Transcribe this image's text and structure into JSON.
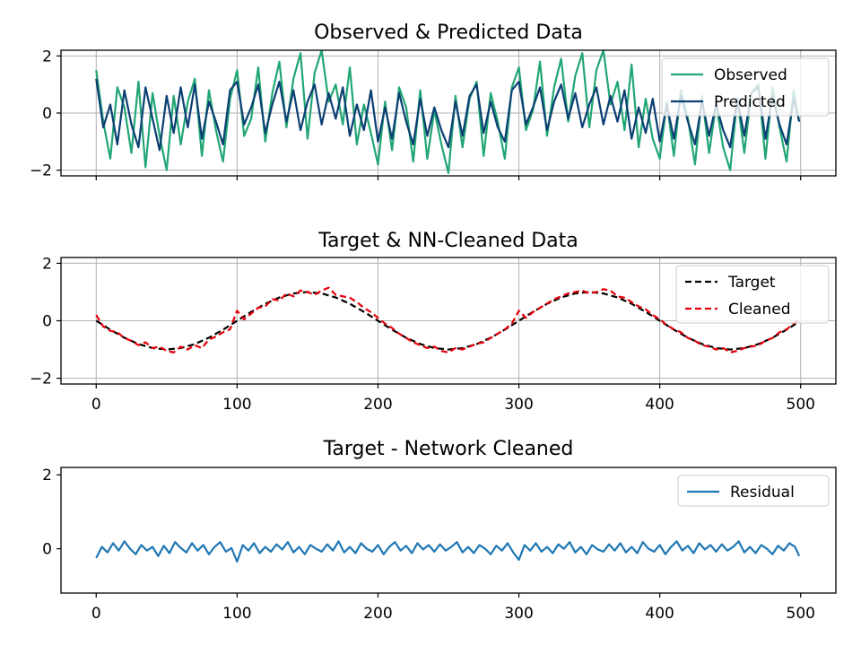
{
  "chart_data": [
    {
      "type": "line",
      "title": "Observed & Predicted Data",
      "xlabel": "",
      "ylabel": "",
      "xlim": [
        -25,
        525
      ],
      "ylim": [
        -2.2,
        2.2
      ],
      "xticks": [
        0,
        100,
        200,
        300,
        400,
        500
      ],
      "xtick_labels_visible": false,
      "yticks": [
        -2,
        0,
        2
      ],
      "ytick_labels": [
        "−2",
        "0",
        "2"
      ],
      "grid": true,
      "legend": "upper-right",
      "series": [
        {
          "name": "Observed",
          "color": "#21a674",
          "style": "solid",
          "x": [
            0,
            5,
            10,
            15,
            20,
            25,
            30,
            35,
            40,
            45,
            50,
            55,
            60,
            65,
            70,
            75,
            80,
            85,
            90,
            95,
            100,
            105,
            110,
            115,
            120,
            125,
            130,
            135,
            140,
            145,
            150,
            155,
            160,
            165,
            170,
            175,
            180,
            185,
            190,
            195,
            200,
            205,
            210,
            215,
            220,
            225,
            230,
            235,
            240,
            245,
            250,
            255,
            260,
            265,
            270,
            275,
            280,
            285,
            290,
            295,
            300,
            305,
            310,
            315,
            320,
            325,
            330,
            335,
            340,
            345,
            350,
            355,
            360,
            365,
            370,
            375,
            380,
            385,
            390,
            395,
            400,
            405,
            410,
            415,
            420,
            425,
            430,
            435,
            440,
            445,
            450,
            455,
            460,
            465,
            470,
            475,
            480,
            485,
            490,
            495,
            499
          ],
          "y": [
            1.5,
            -0.3,
            -1.6,
            0.9,
            0.2,
            -1.4,
            1.1,
            -1.9,
            0.7,
            -0.8,
            -2.0,
            0.6,
            -1.1,
            0.4,
            1.2,
            -1.5,
            0.8,
            -0.6,
            -1.7,
            0.5,
            1.5,
            -0.8,
            -0.2,
            1.6,
            -1.0,
            0.7,
            1.8,
            -0.5,
            1.2,
            2.1,
            -0.9,
            1.4,
            2.2,
            0.4,
            1.0,
            -0.4,
            1.6,
            -1.1,
            0.3,
            -0.7,
            -1.8,
            0.4,
            -1.3,
            0.9,
            0.2,
            -1.7,
            0.8,
            -1.6,
            0.1,
            -1.1,
            -2.1,
            0.6,
            -1.2,
            0.5,
            1.1,
            -1.5,
            0.7,
            -0.3,
            -1.6,
            0.9,
            1.6,
            -0.6,
            0.1,
            1.8,
            -0.8,
            0.9,
            1.9,
            -0.3,
            1.3,
            2.1,
            -0.5,
            1.5,
            2.2,
            0.3,
            1.1,
            -0.6,
            1.7,
            -1.2,
            0.5,
            -0.9,
            -1.6,
            0.4,
            -1.5,
            0.8,
            -0.2,
            -1.8,
            0.6,
            -1.4,
            0.3,
            -1.2,
            -2.0,
            0.5,
            -1.4,
            0.7,
            1.0,
            -1.6,
            0.9,
            -0.5,
            -1.7,
            0.8,
            -0.3
          ]
        },
        {
          "name": "Predicted",
          "color": "#0b3f73",
          "style": "solid",
          "x": [
            0,
            5,
            10,
            15,
            20,
            25,
            30,
            35,
            40,
            45,
            50,
            55,
            60,
            65,
            70,
            75,
            80,
            85,
            90,
            95,
            100,
            105,
            110,
            115,
            120,
            125,
            130,
            135,
            140,
            145,
            150,
            155,
            160,
            165,
            170,
            175,
            180,
            185,
            190,
            195,
            200,
            205,
            210,
            215,
            220,
            225,
            230,
            235,
            240,
            245,
            250,
            255,
            260,
            265,
            270,
            275,
            280,
            285,
            290,
            295,
            300,
            305,
            310,
            315,
            320,
            325,
            330,
            335,
            340,
            345,
            350,
            355,
            360,
            365,
            370,
            375,
            380,
            385,
            390,
            395,
            400,
            405,
            410,
            415,
            420,
            425,
            430,
            435,
            440,
            445,
            450,
            455,
            460,
            465,
            470,
            475,
            480,
            485,
            490,
            495,
            499
          ],
          "y": [
            1.2,
            -0.5,
            0.3,
            -1.1,
            0.8,
            -0.4,
            -1.2,
            0.9,
            -0.2,
            -1.3,
            0.6,
            -0.7,
            0.9,
            -0.5,
            1.0,
            -0.9,
            0.4,
            -0.3,
            -1.1,
            0.8,
            1.1,
            -0.4,
            0.2,
            1.0,
            -0.7,
            0.3,
            1.1,
            -0.3,
            0.8,
            -0.6,
            0.4,
            1.0,
            -0.4,
            0.7,
            -0.2,
            0.9,
            -0.8,
            0.3,
            -0.6,
            0.8,
            -1.0,
            0.2,
            -0.9,
            0.7,
            -0.3,
            -1.1,
            0.5,
            -0.8,
            0.2,
            -0.6,
            -1.2,
            0.4,
            -0.8,
            0.6,
            1.0,
            -0.7,
            0.4,
            -0.5,
            -1.0,
            0.8,
            1.1,
            -0.4,
            0.2,
            0.9,
            -0.6,
            0.4,
            1.0,
            -0.2,
            0.7,
            -0.5,
            0.3,
            0.9,
            -0.4,
            0.6,
            -0.3,
            0.8,
            -0.9,
            0.2,
            -0.7,
            0.5,
            -1.0,
            0.3,
            -0.9,
            0.6,
            -0.3,
            -1.1,
            0.4,
            -0.8,
            0.3,
            -0.6,
            -1.2,
            0.5,
            -0.8,
            0.7,
            0.9,
            -0.9,
            0.6,
            -0.4,
            -1.1,
            0.5,
            -0.3
          ]
        }
      ]
    },
    {
      "type": "line",
      "title": "Target & NN-Cleaned Data",
      "xlabel": "",
      "ylabel": "",
      "xlim": [
        -25,
        525
      ],
      "ylim": [
        -2.2,
        2.2
      ],
      "xticks": [
        0,
        100,
        200,
        300,
        400,
        500
      ],
      "xtick_labels": [
        "0",
        "100",
        "200",
        "300",
        "400",
        "500"
      ],
      "yticks": [
        -2,
        0,
        2
      ],
      "ytick_labels": [
        "−2",
        "0",
        "2"
      ],
      "grid": true,
      "legend": "upper-right",
      "series": [
        {
          "name": "Target",
          "color": "#000000",
          "style": "dashed",
          "x": [
            0,
            10,
            20,
            30,
            40,
            50,
            60,
            70,
            80,
            90,
            100,
            110,
            120,
            130,
            140,
            150,
            160,
            170,
            180,
            190,
            200,
            210,
            220,
            230,
            240,
            250,
            260,
            270,
            280,
            290,
            300,
            310,
            320,
            330,
            340,
            350,
            360,
            370,
            380,
            390,
            400,
            410,
            420,
            430,
            440,
            450,
            460,
            470,
            480,
            490,
            499
          ],
          "y": [
            0.0,
            -0.31,
            -0.59,
            -0.81,
            -0.95,
            -1.0,
            -0.95,
            -0.81,
            -0.59,
            -0.31,
            0.0,
            0.31,
            0.59,
            0.81,
            0.95,
            1.0,
            0.95,
            0.81,
            0.59,
            0.31,
            0.0,
            -0.31,
            -0.59,
            -0.81,
            -0.95,
            -1.0,
            -0.95,
            -0.81,
            -0.59,
            -0.31,
            0.0,
            0.31,
            0.59,
            0.81,
            0.95,
            1.0,
            0.95,
            0.81,
            0.59,
            0.31,
            0.0,
            -0.31,
            -0.59,
            -0.81,
            -0.95,
            -1.0,
            -0.95,
            -0.81,
            -0.59,
            -0.31,
            -0.03
          ]
        },
        {
          "name": "Cleaned",
          "color": "#e8000b",
          "style": "dashed",
          "x": [
            0,
            5,
            10,
            15,
            20,
            25,
            30,
            35,
            40,
            45,
            50,
            55,
            60,
            65,
            70,
            75,
            80,
            85,
            90,
            95,
            100,
            105,
            110,
            115,
            120,
            125,
            130,
            135,
            140,
            145,
            150,
            155,
            160,
            165,
            170,
            175,
            180,
            185,
            190,
            195,
            200,
            205,
            210,
            215,
            220,
            225,
            230,
            235,
            240,
            245,
            250,
            255,
            260,
            265,
            270,
            275,
            280,
            285,
            290,
            295,
            300,
            305,
            310,
            315,
            320,
            325,
            330,
            335,
            340,
            345,
            350,
            355,
            360,
            365,
            370,
            375,
            380,
            385,
            390,
            395,
            400,
            405,
            410,
            415,
            420,
            425,
            430,
            435,
            440,
            445,
            450,
            455,
            460,
            465,
            470,
            475,
            480,
            485,
            490,
            495,
            499
          ],
          "y": [
            0.2,
            -0.2,
            -0.35,
            -0.4,
            -0.6,
            -0.7,
            -0.85,
            -0.75,
            -0.95,
            -0.9,
            -1.05,
            -1.1,
            -0.9,
            -1.0,
            -0.85,
            -0.95,
            -0.65,
            -0.55,
            -0.4,
            -0.3,
            0.35,
            0.05,
            0.25,
            0.45,
            0.5,
            0.75,
            0.7,
            0.95,
            0.85,
            1.05,
            1.0,
            0.9,
            1.05,
            1.15,
            0.9,
            0.85,
            0.8,
            0.65,
            0.45,
            0.3,
            0.1,
            -0.1,
            -0.25,
            -0.45,
            -0.6,
            -0.75,
            -0.85,
            -0.95,
            -0.9,
            -1.05,
            -1.1,
            -0.95,
            -1.0,
            -0.9,
            -0.8,
            -0.75,
            -0.6,
            -0.45,
            -0.3,
            -0.1,
            0.35,
            0.1,
            0.3,
            0.45,
            0.6,
            0.75,
            0.85,
            0.95,
            1.0,
            1.05,
            0.95,
            1.0,
            1.1,
            1.05,
            0.85,
            0.8,
            0.65,
            0.5,
            0.4,
            0.2,
            0.05,
            -0.15,
            -0.3,
            -0.4,
            -0.6,
            -0.7,
            -0.85,
            -0.9,
            -1.0,
            -0.95,
            -1.1,
            -1.05,
            -0.95,
            -0.9,
            -0.85,
            -0.7,
            -0.6,
            -0.4,
            -0.3,
            -0.1,
            0.05
          ]
        }
      ]
    },
    {
      "type": "line",
      "title": "Target - Network Cleaned",
      "xlabel": "",
      "ylabel": "",
      "xlim": [
        -25,
        525
      ],
      "ylim": [
        -1.2,
        2.2
      ],
      "xticks": [
        0,
        100,
        200,
        300,
        400,
        500
      ],
      "xtick_labels": [
        "0",
        "100",
        "200",
        "300",
        "400",
        "500"
      ],
      "yticks": [
        0,
        2
      ],
      "ytick_labels": [
        "0",
        "2"
      ],
      "grid": false,
      "legend": "upper-right",
      "series": [
        {
          "name": "Residual",
          "color": "#1f77b4",
          "style": "solid",
          "x": [
            0,
            4,
            8,
            12,
            16,
            20,
            24,
            28,
            32,
            36,
            40,
            44,
            48,
            52,
            56,
            60,
            64,
            68,
            72,
            76,
            80,
            84,
            88,
            92,
            96,
            100,
            104,
            108,
            112,
            116,
            120,
            124,
            128,
            132,
            136,
            140,
            144,
            148,
            152,
            156,
            160,
            164,
            168,
            172,
            176,
            180,
            184,
            188,
            192,
            196,
            200,
            204,
            208,
            212,
            216,
            220,
            224,
            228,
            232,
            236,
            240,
            244,
            248,
            252,
            256,
            260,
            264,
            268,
            272,
            276,
            280,
            284,
            288,
            292,
            296,
            300,
            304,
            308,
            312,
            316,
            320,
            324,
            328,
            332,
            336,
            340,
            344,
            348,
            352,
            356,
            360,
            364,
            368,
            372,
            376,
            380,
            384,
            388,
            392,
            396,
            400,
            404,
            408,
            412,
            416,
            420,
            424,
            428,
            432,
            436,
            440,
            444,
            448,
            452,
            456,
            460,
            464,
            468,
            472,
            476,
            480,
            484,
            488,
            492,
            496,
            499
          ],
          "y": [
            -0.25,
            0.05,
            -0.1,
            0.15,
            -0.05,
            0.2,
            0.0,
            -0.15,
            0.1,
            -0.05,
            0.05,
            -0.2,
            0.08,
            -0.12,
            0.18,
            0.02,
            -0.1,
            0.15,
            -0.05,
            0.1,
            -0.15,
            0.05,
            0.18,
            -0.08,
            0.02,
            -0.35,
            0.1,
            -0.05,
            0.15,
            -0.12,
            0.05,
            -0.08,
            0.12,
            -0.02,
            0.18,
            -0.1,
            0.05,
            -0.15,
            0.1,
            0.0,
            -0.08,
            0.12,
            -0.05,
            0.2,
            -0.1,
            0.05,
            -0.12,
            0.15,
            0.0,
            -0.08,
            0.1,
            -0.15,
            0.05,
            0.18,
            -0.05,
            0.08,
            -0.12,
            0.15,
            -0.02,
            0.1,
            -0.08,
            0.12,
            -0.05,
            0.05,
            0.18,
            -0.1,
            0.05,
            -0.12,
            0.1,
            0.0,
            -0.15,
            0.08,
            -0.05,
            0.15,
            -0.1,
            -0.3,
            0.1,
            -0.05,
            0.15,
            -0.08,
            0.05,
            -0.12,
            0.12,
            0.0,
            0.18,
            -0.1,
            0.05,
            -0.15,
            0.1,
            -0.02,
            -0.08,
            0.12,
            -0.05,
            0.15,
            -0.1,
            0.05,
            -0.12,
            0.18,
            0.0,
            -0.08,
            0.1,
            -0.15,
            0.05,
            0.2,
            -0.05,
            0.08,
            -0.12,
            0.15,
            -0.02,
            0.1,
            -0.08,
            0.12,
            -0.05,
            0.05,
            0.2,
            -0.1,
            0.05,
            -0.12,
            0.1,
            0.0,
            -0.15,
            0.08,
            -0.05,
            0.15,
            0.05,
            -0.2
          ]
        }
      ]
    }
  ]
}
